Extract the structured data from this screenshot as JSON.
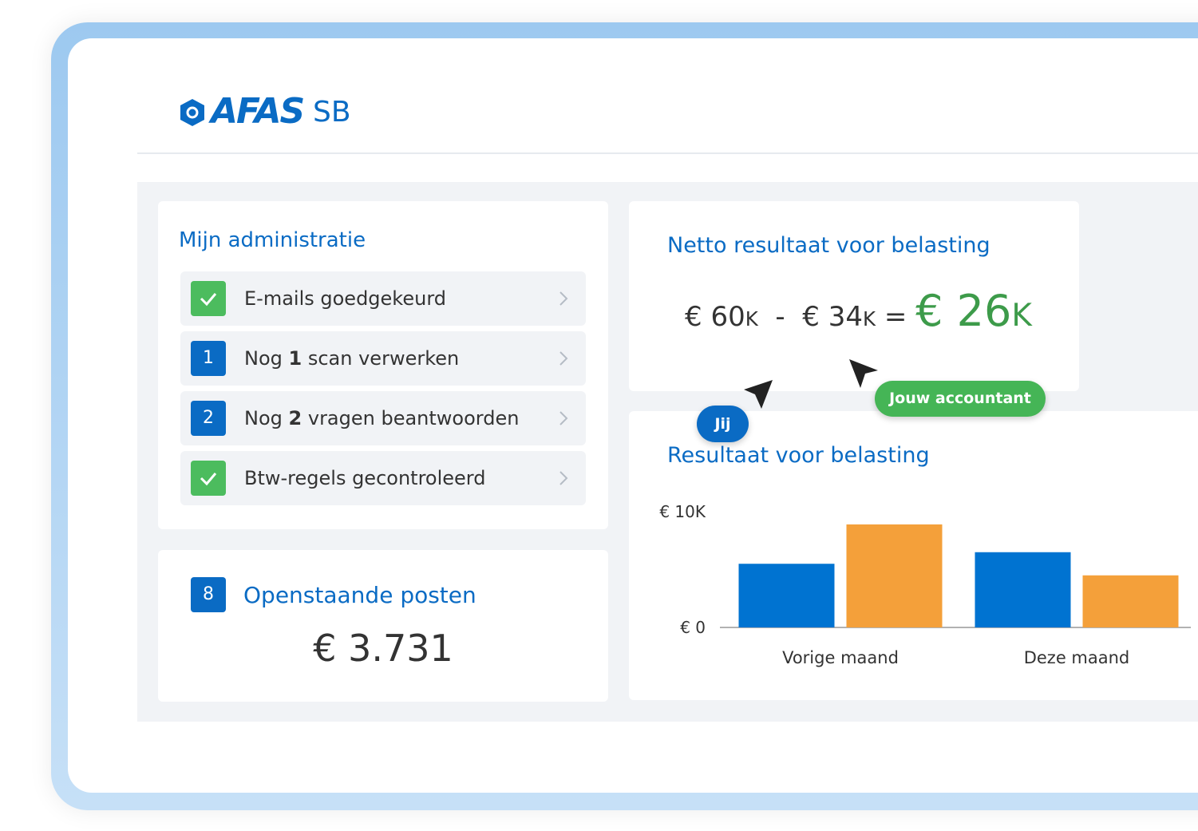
{
  "logo": {
    "brand": "AFAS",
    "suffix": "SB"
  },
  "admin": {
    "title": "Mijn administratie",
    "items": [
      {
        "checked": true,
        "label": "E-mails goedgekeurd"
      },
      {
        "badge": "1",
        "prefix": "Nog",
        "count": "1",
        "suffix": "scan verwerken"
      },
      {
        "badge": "2",
        "prefix": "Nog",
        "count": "2",
        "suffix": "vragen beantwoorden"
      },
      {
        "checked": true,
        "label": "Btw-regels gecontroleerd"
      }
    ]
  },
  "open_items": {
    "badge": "8",
    "title": "Openstaande posten",
    "amount": "€ 3.731"
  },
  "net_result": {
    "title": "Netto resultaat voor belasting",
    "revenue": "€ 60",
    "minus": "-",
    "costs": "€ 34",
    "equals": "=",
    "result": "€ 26",
    "unit": "K"
  },
  "cursors": {
    "you": "Jij",
    "accountant": "Jouw accountant"
  },
  "chart_data": {
    "type": "bar",
    "title": "Resultaat voor belasting",
    "categories": [
      "Vorige maand",
      "Deze maand"
    ],
    "series": [
      {
        "color": "#0073d1",
        "values": [
          5500,
          6500
        ]
      },
      {
        "color": "#f4a03a",
        "values": [
          8900,
          4500
        ]
      }
    ],
    "ylim": [
      0,
      10000
    ],
    "yticks": [
      {
        "value": 0,
        "label": "€ 0"
      },
      {
        "value": 10000,
        "label": "€ 10K"
      }
    ]
  }
}
